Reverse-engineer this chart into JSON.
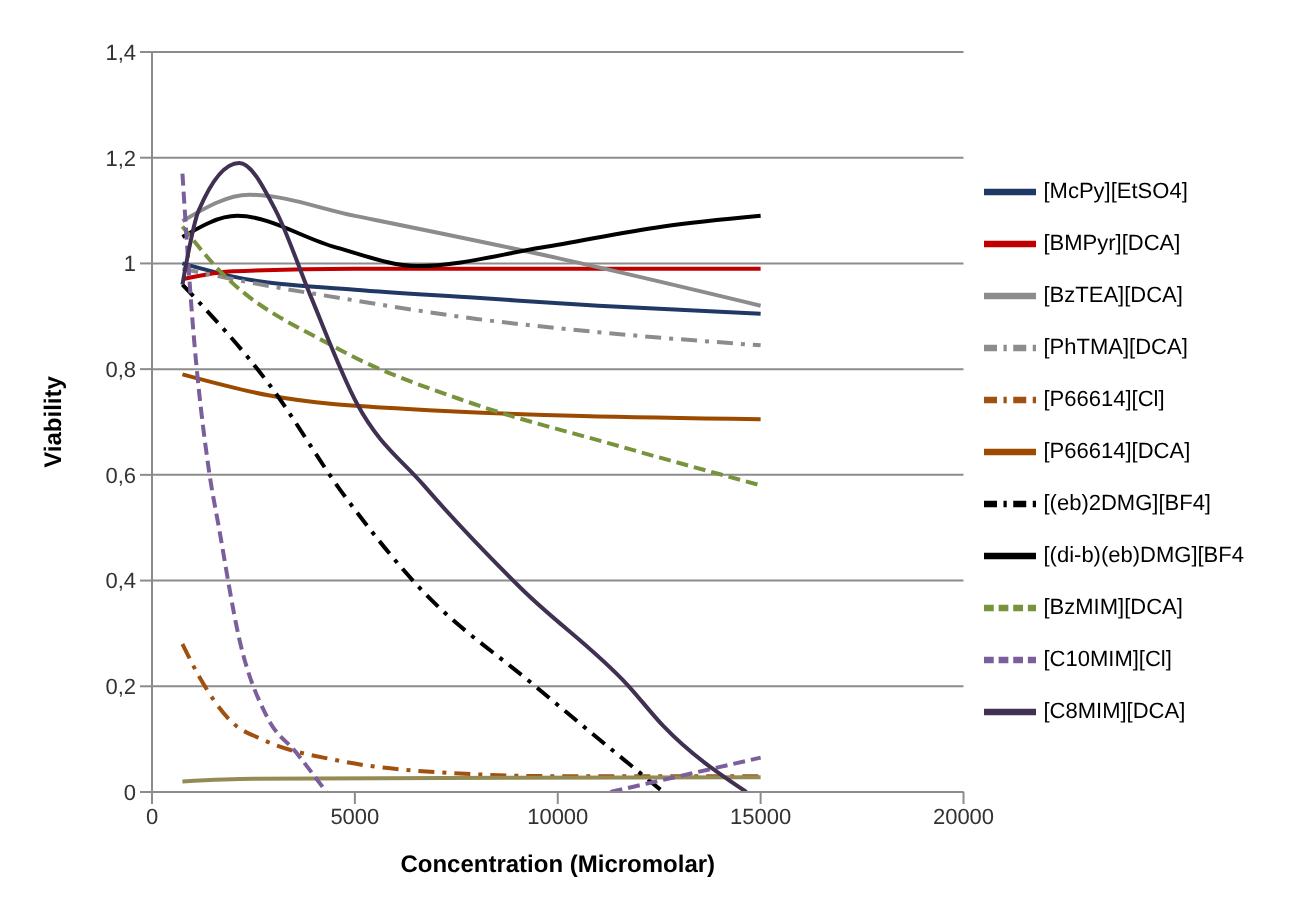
{
  "chart_data": {
    "type": "line",
    "xlabel": "Concentration (Micromolar)",
    "ylabel": "Viability",
    "xlim": [
      0,
      20000
    ],
    "xticks": [
      0,
      5000,
      10000,
      15000,
      20000
    ],
    "ylim": [
      0,
      1.4
    ],
    "yticks": [
      0,
      {
        "value": 0.2,
        "label": "0,2"
      },
      {
        "value": 0.4,
        "label": "0,4"
      },
      {
        "value": 0.6,
        "label": "0,6"
      },
      {
        "value": 0.8,
        "label": "0,8"
      },
      1,
      {
        "value": 1.2,
        "label": "1,2"
      },
      {
        "value": 1.4,
        "label": "1,4"
      }
    ],
    "grid": "y",
    "legend": "right",
    "marker": "none",
    "series": [
      {
        "name": "[McPy][EtSO4]",
        "color": "#1f3864",
        "line_style": "solid",
        "x": [
          750,
          2000,
          5000,
          8000,
          11000,
          15000
        ],
        "values": [
          1.0,
          0.975,
          0.95,
          0.935,
          0.92,
          0.905
        ]
      },
      {
        "name": "[BMPyr][DCA]",
        "color": "#c00000",
        "line_style": "solid",
        "x": [
          750,
          2000,
          5000,
          15000
        ],
        "values": [
          0.97,
          0.985,
          0.99,
          0.99
        ]
      },
      {
        "name": "[BzTEA][DCA]",
        "color": "#8c8c8c",
        "line_style": "solid",
        "x": [
          750,
          2400,
          5000,
          10000,
          15000
        ],
        "values": [
          1.08,
          1.13,
          1.09,
          1.01,
          0.92
        ]
      },
      {
        "name": "[PhTMA][DCA]",
        "color": "#8c8c8c",
        "line_style": "dashdot",
        "x": [
          750,
          2000,
          5000,
          8000,
          11000,
          15000
        ],
        "values": [
          0.99,
          0.97,
          0.93,
          0.895,
          0.87,
          0.845
        ]
      },
      {
        "name": "[P66614][Cl]",
        "color": "#a0500f",
        "line_style": "dashdot",
        "x": [
          750,
          1150,
          2000,
          2700,
          4550,
          6550,
          10000,
          15000
        ],
        "values": [
          0.28,
          0.22,
          0.13,
          0.1,
          0.06,
          0.04,
          0.03,
          0.03
        ]
      },
      {
        "name": "[P66614][DCA]",
        "color": "#9c4a00",
        "line_style": "solid",
        "x": [
          750,
          2900,
          6200,
          15000
        ],
        "values": [
          0.79,
          0.75,
          0.725,
          0.705
        ]
      },
      {
        "name": "[(eb)2DMG][BF4]",
        "color": "#000000",
        "line_style": "dashdot",
        "x": [
          750,
          2900,
          4700,
          6550,
          9450,
          12600
        ],
        "values": [
          0.96,
          0.77,
          0.565,
          0.39,
          0.2,
          0
        ]
      },
      {
        "name": "[(di-b)(eb)DMG][BF4",
        "color": "#000000",
        "line_style": "solid",
        "x": [
          750,
          2100,
          4550,
          6550,
          9600,
          12600,
          15000
        ],
        "values": [
          1.05,
          1.09,
          1.03,
          0.995,
          1.03,
          1.07,
          1.09
        ]
      },
      {
        "color": "#948a54",
        "line_style": "solid",
        "x": [
          750,
          2500,
          15000
        ],
        "values": [
          0.02,
          0.025,
          0.028
        ]
      },
      {
        "name": "[BzMIM][DCA]",
        "color": "#77933c",
        "line_style": "dashed",
        "x": [
          750,
          1500,
          4550,
          7900,
          11250,
          15000
        ],
        "values": [
          1.07,
          1.0,
          0.84,
          0.735,
          0.66,
          0.58
        ]
      },
      {
        "name": "[C10MIM][Cl]",
        "color": "#7a5f9c",
        "line_style": "dashed",
        "x": [
          750,
          1000,
          1400,
          1650,
          2150,
          2850,
          3550,
          4300,
          7000,
          11300,
          13000,
          15000
        ],
        "values": [
          1.17,
          0.89,
          0.61,
          0.5,
          0.29,
          0.14,
          0.075,
          0,
          null,
          0,
          0.03,
          0.065
        ]
      },
      {
        "name": "[C8MIM][DCA]",
        "color": "#403152",
        "line_style": "solid",
        "x": [
          750,
          1150,
          2150,
          3050,
          3900,
          5050,
          6700,
          9100,
          11750,
          12600,
          14650
        ],
        "values": [
          0.96,
          1.1,
          1.19,
          1.1,
          0.94,
          0.735,
          0.58,
          0.385,
          0.2,
          0.125,
          0
        ]
      }
    ]
  }
}
